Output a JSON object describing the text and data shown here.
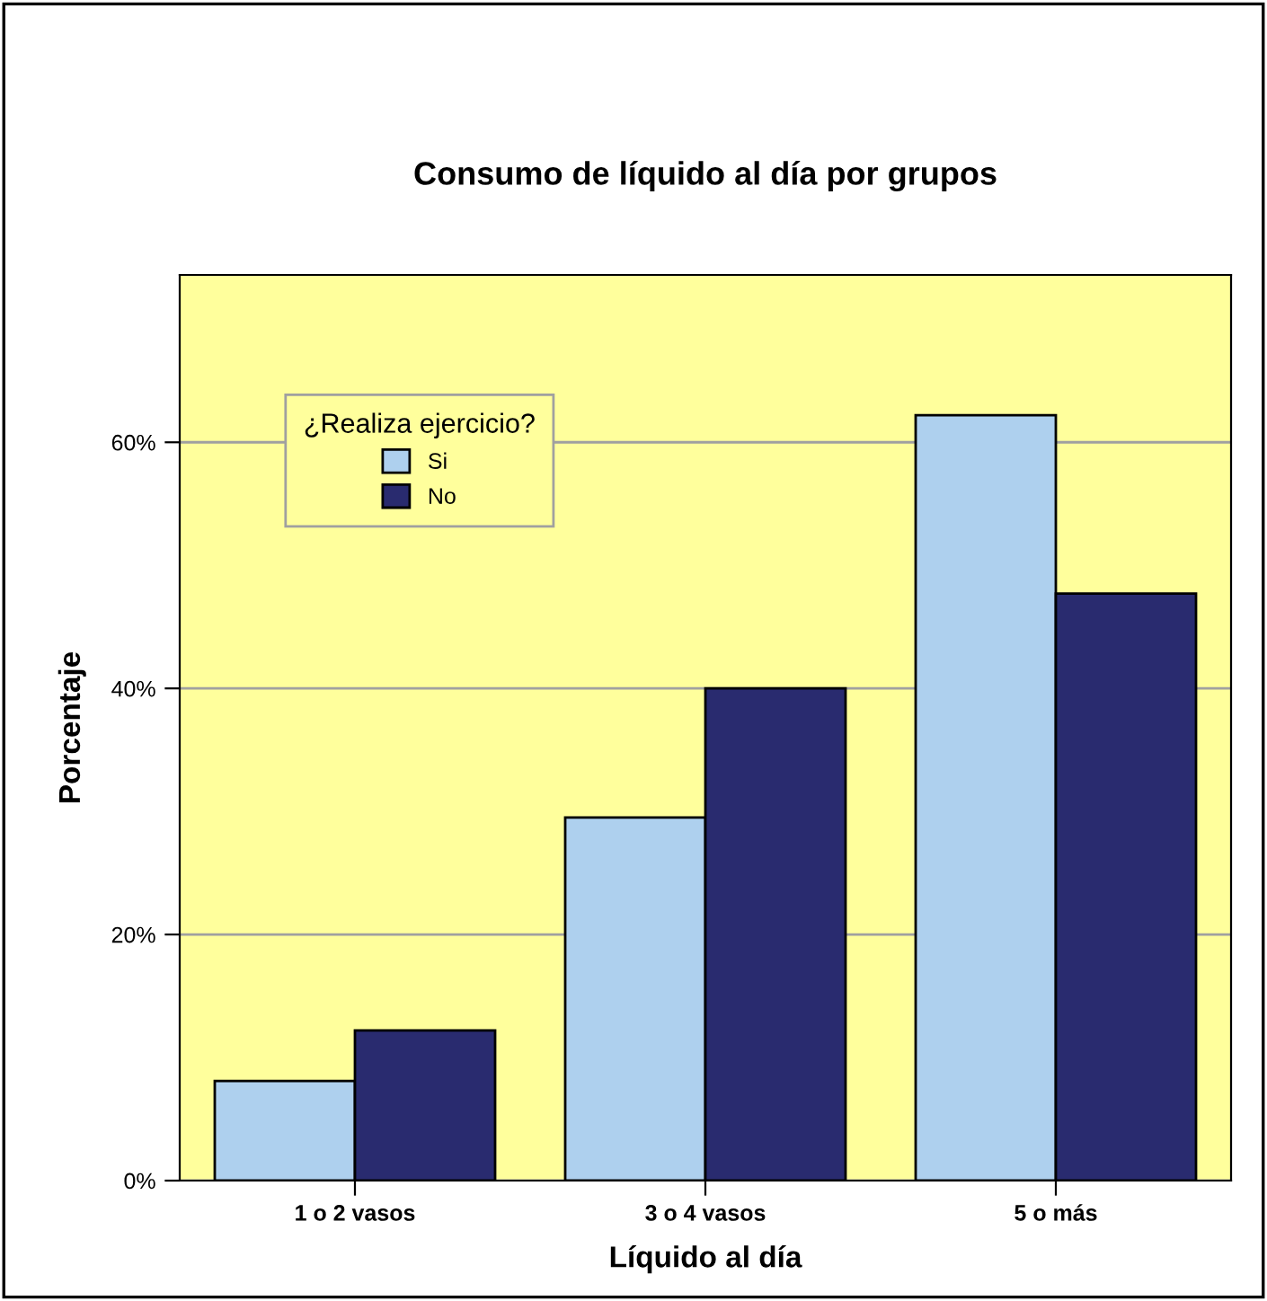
{
  "chart_data": {
    "type": "bar",
    "title": "Consumo de líquido al día por grupos",
    "xlabel": "Líquido al día",
    "ylabel": "Porcentaje",
    "legend_title": "¿Realiza ejercicio?",
    "categories": [
      "1 o 2 vasos",
      "3 o 4 vasos",
      "5 o más"
    ],
    "series": [
      {
        "name": "Si",
        "color": "#aed0ee",
        "values": [
          8.1,
          29.5,
          62.2
        ]
      },
      {
        "name": "No",
        "color": "#292b6f",
        "values": [
          12.2,
          40.0,
          47.7
        ]
      }
    ],
    "ylim": [
      0,
      73.6
    ],
    "yticks": [
      {
        "value": 0,
        "label": "0%"
      },
      {
        "value": 20,
        "label": "20%"
      },
      {
        "value": 40,
        "label": "40%"
      },
      {
        "value": 60,
        "label": "60%"
      }
    ],
    "grid": "y",
    "legend": "top left"
  }
}
